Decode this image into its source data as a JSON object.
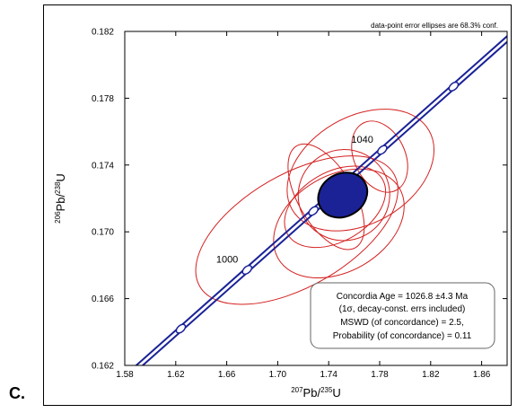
{
  "panel_label": "C.",
  "chart_data": {
    "type": "scatter",
    "subtype": "concordia-diagram",
    "header_note": "data-point error ellipses are 68.3% conf.",
    "xlabel": {
      "sup": "207",
      "main": "Pb/",
      "sup2": "235",
      "main2": "U"
    },
    "ylabel": {
      "sup": "206",
      "main": "Pb/",
      "sup2": "238",
      "main2": "U"
    },
    "xlim": [
      1.58,
      1.88
    ],
    "ylim": [
      0.162,
      0.182
    ],
    "xticks": [
      "1.58",
      "1.62",
      "1.66",
      "1.70",
      "1.74",
      "1.78",
      "1.82",
      "1.86"
    ],
    "xtick_values": [
      1.58,
      1.62,
      1.66,
      1.7,
      1.74,
      1.78,
      1.82,
      1.86
    ],
    "yticks": [
      "0.162",
      "0.166",
      "0.170",
      "0.174",
      "0.178",
      "0.182"
    ],
    "ytick_values": [
      0.162,
      0.166,
      0.17,
      0.174,
      0.178,
      0.182
    ],
    "grid": false,
    "concordia_markers": [
      {
        "x": 1.624,
        "y": 0.1642
      },
      {
        "x": 1.676,
        "y": 0.1679
      },
      {
        "x": 1.728,
        "y": 0.1715
      },
      {
        "x": 1.782,
        "y": 0.1751
      },
      {
        "x": 1.838,
        "y": 0.1787
      }
    ],
    "age_labels": [
      {
        "text": "1000",
        "x": 1.676,
        "y": 0.1679
      },
      {
        "text": "1040",
        "x": 1.782,
        "y": 0.1751
      }
    ],
    "data_ellipses": [
      {
        "cx": 1.715,
        "cy": 0.1701,
        "rx": 0.088,
        "ry": 0.0021,
        "angle_deg": 30
      },
      {
        "cx": 1.748,
        "cy": 0.1705,
        "rx": 0.055,
        "ry": 0.0018,
        "angle_deg": 30
      },
      {
        "cx": 1.765,
        "cy": 0.1737,
        "rx": 0.062,
        "ry": 0.002,
        "angle_deg": 30
      },
      {
        "cx": 1.752,
        "cy": 0.1722,
        "rx": 0.036,
        "ry": 0.0017,
        "angle_deg": 30
      },
      {
        "cx": 1.745,
        "cy": 0.1715,
        "rx": 0.043,
        "ry": 0.0013,
        "angle_deg": 30
      },
      {
        "cx": 1.738,
        "cy": 0.1721,
        "rx": 0.022,
        "ry": 0.0022,
        "angle_deg": 30
      },
      {
        "cx": 1.78,
        "cy": 0.1745,
        "rx": 0.02,
        "ry": 0.0014,
        "angle_deg": 25
      }
    ],
    "concordia_age_ellipse": {
      "cx": 1.751,
      "cy": 0.1722,
      "rx": 0.02,
      "ry": 0.0008,
      "angle_deg": 30
    },
    "result_box": {
      "line1": "Concordia Age = 1026.8 ±4.3 Ma",
      "line2": "(1σ, decay-const. errs included)",
      "line3": "MSWD (of concordance) = 2.5,",
      "line4": "Probability (of concordance) = 0.11"
    },
    "colors": {
      "concordia": "#1a2296",
      "ellipse": "#d42020",
      "age_ellipse": "#000000",
      "age_fill": "#1a2296"
    }
  }
}
